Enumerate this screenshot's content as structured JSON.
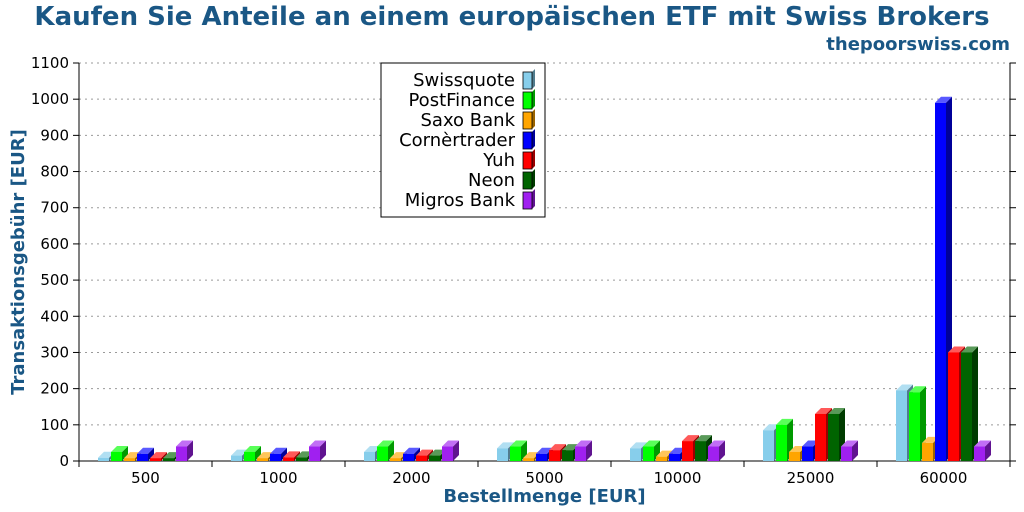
{
  "header": {
    "title": "Kaufen Sie Anteile an einem europäischen ETF mit Swiss Brokers",
    "source": "thepoorswiss.com"
  },
  "chart_data": {
    "type": "bar",
    "title": "Kaufen Sie Anteile an einem europäischen ETF mit Swiss Brokers",
    "xlabel": "Bestellmenge [EUR]",
    "ylabel": "Transaktionsgebühr [EUR]",
    "ylim": [
      0,
      1100
    ],
    "yticks": [
      0,
      100,
      200,
      300,
      400,
      500,
      600,
      700,
      800,
      900,
      1000,
      1100
    ],
    "grid": true,
    "legend_position": "top-center",
    "categories": [
      "500",
      "1000",
      "2000",
      "5000",
      "10000",
      "25000",
      "60000"
    ],
    "series": [
      {
        "name": "Swissquote",
        "color": "#87ceeb",
        "values": [
          9,
          15,
          25,
          35,
          35,
          85,
          195
        ]
      },
      {
        "name": "PostFinance",
        "color": "#00ff00",
        "values": [
          25,
          25,
          40,
          40,
          40,
          100,
          190
        ]
      },
      {
        "name": "Saxo Bank",
        "color": "#ffa500",
        "values": [
          8,
          8,
          8,
          8,
          12,
          25,
          50
        ]
      },
      {
        "name": "Cornèrtrader",
        "color": "#0000ff",
        "values": [
          20,
          20,
          20,
          20,
          20,
          40,
          990
        ]
      },
      {
        "name": "Yuh",
        "color": "#ff0000",
        "values": [
          8,
          10,
          15,
          30,
          55,
          130,
          300
        ]
      },
      {
        "name": "Neon",
        "color": "#006400",
        "values": [
          8,
          10,
          15,
          30,
          55,
          130,
          300
        ]
      },
      {
        "name": "Migros Bank",
        "color": "#a020f0",
        "values": [
          40,
          40,
          40,
          40,
          40,
          40,
          40
        ]
      }
    ]
  }
}
